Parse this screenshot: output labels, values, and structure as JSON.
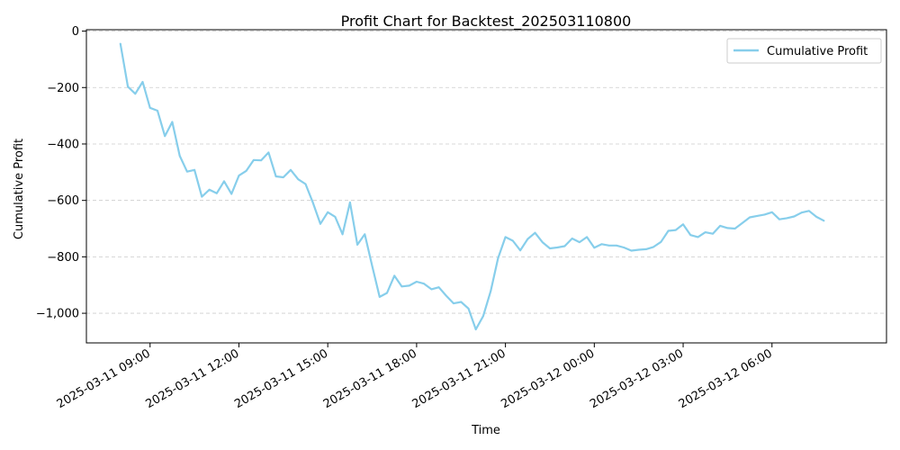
{
  "chart_data": {
    "type": "line",
    "title": "Profit Chart for Backtest_202503110800",
    "xlabel": "Time",
    "ylabel": "Cumulative Profit",
    "ylim": [
      -1105,
      5
    ],
    "xlim": [
      "2025-03-11 06:51",
      "2025-03-12 09:52"
    ],
    "grid": {
      "y": true,
      "x": false,
      "style": "dashed"
    },
    "legend_position": "top-right",
    "y_ticks": [
      0,
      -200,
      -400,
      -600,
      -800,
      -1000
    ],
    "y_tick_labels": [
      "0",
      "−200",
      "−400",
      "−600",
      "−800",
      "−1,000"
    ],
    "x_ticks": [
      "2025-03-11 09:00",
      "2025-03-11 12:00",
      "2025-03-11 15:00",
      "2025-03-11 18:00",
      "2025-03-11 21:00",
      "2025-03-12 00:00",
      "2025-03-12 03:00",
      "2025-03-12 06:00"
    ],
    "x_tick_labels": [
      "2025-03-11 09:00",
      "2025-03-11 12:00",
      "2025-03-11 15:00",
      "2025-03-11 18:00",
      "2025-03-11 21:00",
      "2025-03-12 00:00",
      "2025-03-12 03:00",
      "2025-03-12 06:00"
    ],
    "colors": {
      "line": "#87ceeb",
      "grid": "#cccccc"
    },
    "series": [
      {
        "name": "Cumulative Profit",
        "x": [
          "2025-03-11 08:00",
          "2025-03-11 08:15",
          "2025-03-11 08:30",
          "2025-03-11 08:45",
          "2025-03-11 09:00",
          "2025-03-11 09:15",
          "2025-03-11 09:30",
          "2025-03-11 09:45",
          "2025-03-11 10:00",
          "2025-03-11 10:15",
          "2025-03-11 10:30",
          "2025-03-11 10:45",
          "2025-03-11 11:00",
          "2025-03-11 11:15",
          "2025-03-11 11:30",
          "2025-03-11 11:45",
          "2025-03-11 12:00",
          "2025-03-11 12:15",
          "2025-03-11 12:30",
          "2025-03-11 12:45",
          "2025-03-11 13:00",
          "2025-03-11 13:15",
          "2025-03-11 13:30",
          "2025-03-11 13:45",
          "2025-03-11 14:00",
          "2025-03-11 14:15",
          "2025-03-11 14:30",
          "2025-03-11 14:45",
          "2025-03-11 15:00",
          "2025-03-11 15:15",
          "2025-03-11 15:30",
          "2025-03-11 15:45",
          "2025-03-11 16:00",
          "2025-03-11 16:15",
          "2025-03-11 16:30",
          "2025-03-11 16:45",
          "2025-03-11 17:00",
          "2025-03-11 17:15",
          "2025-03-11 17:30",
          "2025-03-11 17:45",
          "2025-03-11 18:00",
          "2025-03-11 18:15",
          "2025-03-11 18:30",
          "2025-03-11 18:45",
          "2025-03-11 19:00",
          "2025-03-11 19:15",
          "2025-03-11 19:30",
          "2025-03-11 19:45",
          "2025-03-11 20:00",
          "2025-03-11 20:15",
          "2025-03-11 20:30",
          "2025-03-11 20:45",
          "2025-03-11 21:00",
          "2025-03-11 21:15",
          "2025-03-11 21:30",
          "2025-03-11 21:45",
          "2025-03-11 22:00",
          "2025-03-11 22:15",
          "2025-03-11 22:30",
          "2025-03-11 22:45",
          "2025-03-11 23:00",
          "2025-03-11 23:15",
          "2025-03-11 23:30",
          "2025-03-11 23:45",
          "2025-03-12 00:00",
          "2025-03-12 00:15",
          "2025-03-12 00:30",
          "2025-03-12 00:45",
          "2025-03-12 01:00",
          "2025-03-12 01:15",
          "2025-03-12 01:30",
          "2025-03-12 01:45",
          "2025-03-12 02:00",
          "2025-03-12 02:15",
          "2025-03-12 02:30",
          "2025-03-12 02:45",
          "2025-03-12 03:00",
          "2025-03-12 03:15",
          "2025-03-12 03:30",
          "2025-03-12 03:45",
          "2025-03-12 04:00",
          "2025-03-12 04:15",
          "2025-03-12 04:30",
          "2025-03-12 04:45",
          "2025-03-12 05:00",
          "2025-03-12 05:15",
          "2025-03-12 05:30",
          "2025-03-12 05:45",
          "2025-03-12 06:00",
          "2025-03-12 06:15",
          "2025-03-12 06:30",
          "2025-03-12 06:45",
          "2025-03-12 07:00",
          "2025-03-12 07:15",
          "2025-03-12 07:30",
          "2025-03-12 07:45"
        ],
        "values": [
          -45,
          -197,
          -222,
          -180,
          -272,
          -282,
          -372,
          -322,
          -442,
          -498,
          -492,
          -587,
          -562,
          -575,
          -532,
          -577,
          -512,
          -495,
          -457,
          -458,
          -430,
          -515,
          -518,
          -492,
          -525,
          -542,
          -608,
          -683,
          -642,
          -658,
          -720,
          -607,
          -757,
          -720,
          -832,
          -942,
          -928,
          -867,
          -905,
          -902,
          -888,
          -895,
          -915,
          -908,
          -938,
          -965,
          -960,
          -983,
          -1057,
          -1010,
          -922,
          -805,
          -730,
          -743,
          -777,
          -737,
          -715,
          -748,
          -770,
          -767,
          -762,
          -735,
          -748,
          -730,
          -768,
          -755,
          -760,
          -760,
          -767,
          -778,
          -775,
          -773,
          -765,
          -747,
          -708,
          -705,
          -685,
          -723,
          -730,
          -713,
          -718,
          -690,
          -698,
          -700,
          -680,
          -660,
          -655,
          -650,
          -642,
          -667,
          -663,
          -657,
          -643,
          -637,
          -658,
          -672
        ]
      }
    ]
  }
}
